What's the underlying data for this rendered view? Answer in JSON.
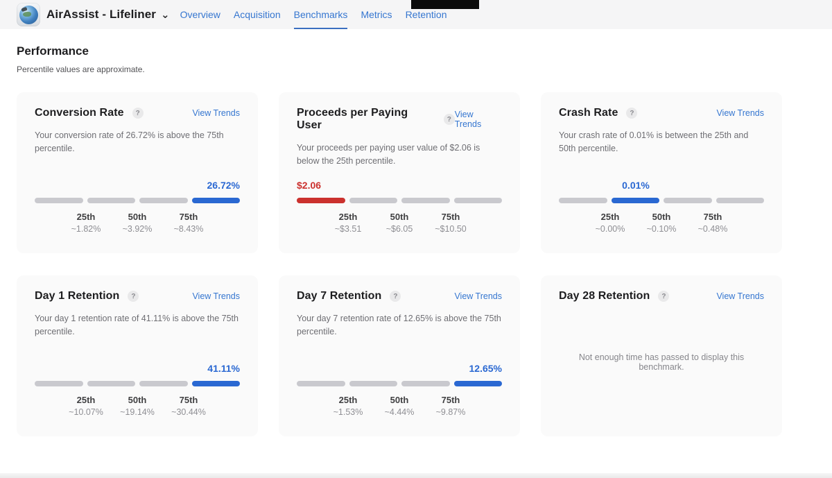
{
  "header": {
    "app_title": "AirAssist - Lifeliner",
    "nav": [
      {
        "label": "Overview",
        "active": false
      },
      {
        "label": "Acquisition",
        "active": false
      },
      {
        "label": "Benchmarks",
        "active": true
      },
      {
        "label": "Metrics",
        "active": false
      },
      {
        "label": "Retention",
        "active": false
      }
    ]
  },
  "page": {
    "title": "Performance",
    "subtitle": "Percentile values are approximate."
  },
  "labels": {
    "view_trends": "View Trends"
  },
  "icons": {
    "chevron_down": "⌄",
    "help": "?"
  },
  "colors": {
    "blue": "#2a68d2",
    "red": "#cb312e",
    "segment_gray": "#c9c9ce",
    "link_blue": "#3576d0"
  },
  "cards": [
    {
      "title": "Conversion Rate",
      "description": "Your conversion rate of 26.72% is above the 75th percentile.",
      "value": "26.72%",
      "status": "blue",
      "segments_total": 4,
      "active_segment": 4,
      "percentiles": [
        {
          "label": "25th",
          "value": "~1.82%"
        },
        {
          "label": "50th",
          "value": "~3.92%"
        },
        {
          "label": "75th",
          "value": "~8.43%"
        }
      ]
    },
    {
      "title": "Proceeds per Paying User",
      "description": "Your proceeds per paying user value of $2.06 is below the 25th percentile.",
      "value": "$2.06",
      "status": "red",
      "segments_total": 4,
      "active_segment": 1,
      "percentiles": [
        {
          "label": "25th",
          "value": "~$3.51"
        },
        {
          "label": "50th",
          "value": "~$6.05"
        },
        {
          "label": "75th",
          "value": "~$10.50"
        }
      ]
    },
    {
      "title": "Crash Rate",
      "description": "Your crash rate of 0.01% is between the 25th and 50th percentile.",
      "value": "0.01%",
      "status": "blue",
      "segments_total": 4,
      "active_segment": 2,
      "percentiles": [
        {
          "label": "25th",
          "value": "~0.00%"
        },
        {
          "label": "50th",
          "value": "~0.10%"
        },
        {
          "label": "75th",
          "value": "~0.48%"
        }
      ]
    },
    {
      "title": "Day 1 Retention",
      "description": "Your day 1 retention rate of 41.11% is above the 75th percentile.",
      "value": "41.11%",
      "status": "blue",
      "segments_total": 4,
      "active_segment": 4,
      "percentiles": [
        {
          "label": "25th",
          "value": "~10.07%"
        },
        {
          "label": "50th",
          "value": "~19.14%"
        },
        {
          "label": "75th",
          "value": "~30.44%"
        }
      ]
    },
    {
      "title": "Day 7 Retention",
      "description": "Your day 7 retention rate of 12.65% is above the 75th percentile.",
      "value": "12.65%",
      "status": "blue",
      "segments_total": 4,
      "active_segment": 4,
      "percentiles": [
        {
          "label": "25th",
          "value": "~1.53%"
        },
        {
          "label": "50th",
          "value": "~4.44%"
        },
        {
          "label": "75th",
          "value": "~9.87%"
        }
      ]
    },
    {
      "title": "Day 28 Retention",
      "empty_message": "Not enough time has passed to display this benchmark."
    }
  ]
}
